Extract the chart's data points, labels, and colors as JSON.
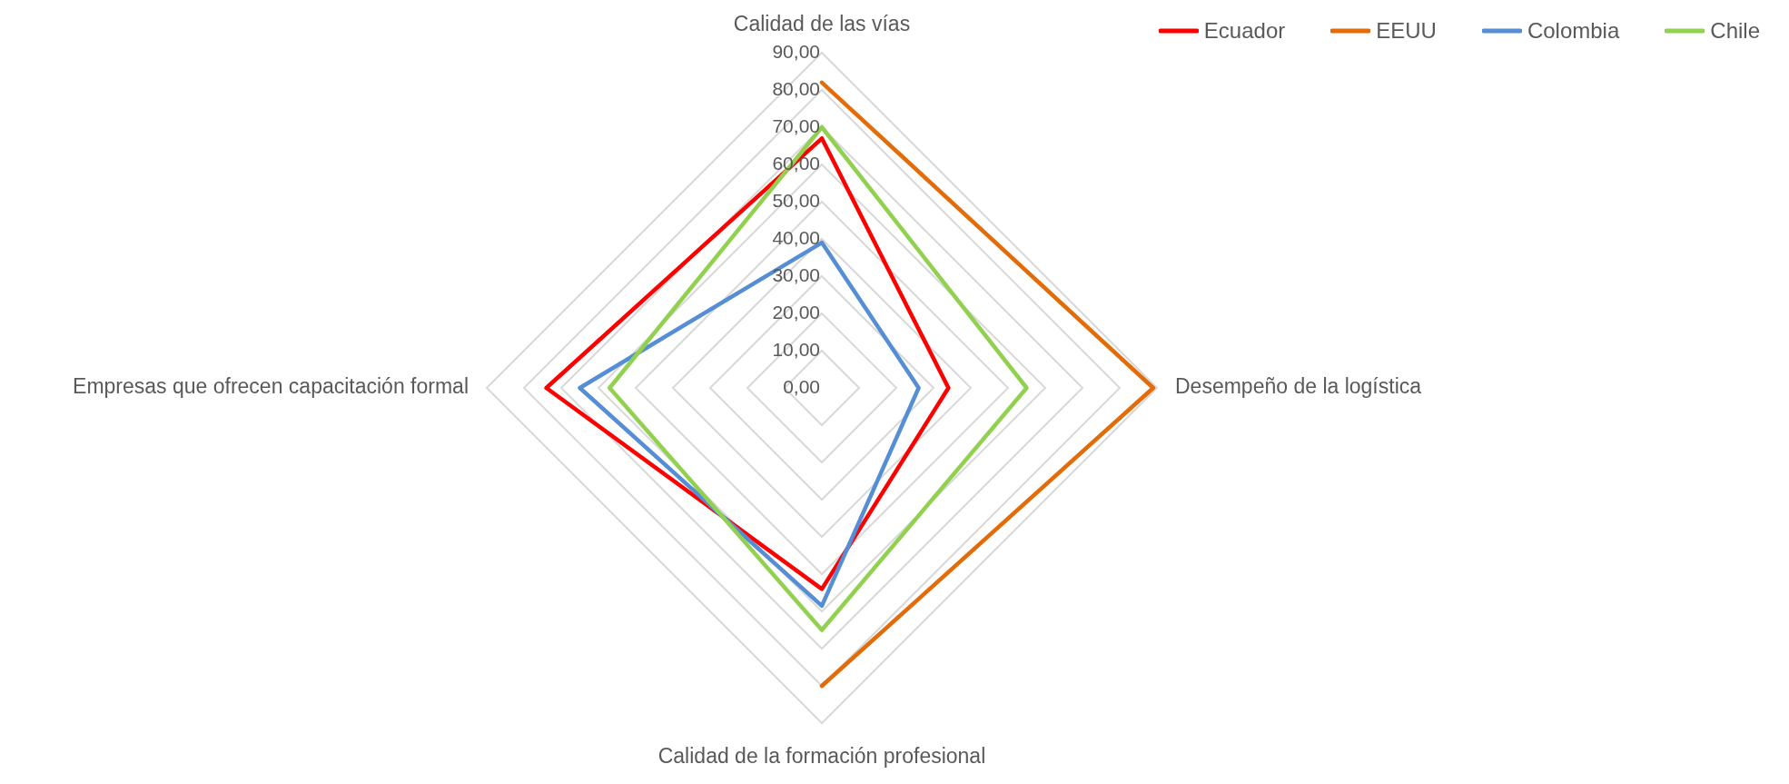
{
  "chart_data": {
    "type": "radar",
    "categories": [
      "Calidad de las vías",
      "Desempeño de la logística",
      "Calidad de la formación profesional",
      "Empresas que ofrecen capacitación formal"
    ],
    "series": [
      {
        "name": "Ecuador",
        "color": "#ff0000",
        "values": [
          67,
          34,
          54,
          74
        ]
      },
      {
        "name": "EEUU",
        "color": "#e36c09",
        "values": [
          82,
          89,
          80,
          null
        ]
      },
      {
        "name": "Colombia",
        "color": "#558ed5",
        "values": [
          39,
          26,
          58.5,
          65
        ]
      },
      {
        "name": "Chile",
        "color": "#92d050",
        "values": [
          70,
          55,
          65,
          57
        ]
      }
    ],
    "ylim": [
      0,
      90
    ],
    "yticks": [
      {
        "value": 0,
        "label": "0,00"
      },
      {
        "value": 10,
        "label": "10,00"
      },
      {
        "value": 20,
        "label": "20,00"
      },
      {
        "value": 30,
        "label": "30,00"
      },
      {
        "value": 40,
        "label": "40,00"
      },
      {
        "value": 50,
        "label": "50,00"
      },
      {
        "value": 60,
        "label": "60,00"
      },
      {
        "value": 70,
        "label": "70,00"
      },
      {
        "value": 80,
        "label": "80,00"
      },
      {
        "value": 90,
        "label": "90,00"
      }
    ],
    "grid": true,
    "legend": "top right",
    "marker": "none",
    "line_style": "solid"
  }
}
